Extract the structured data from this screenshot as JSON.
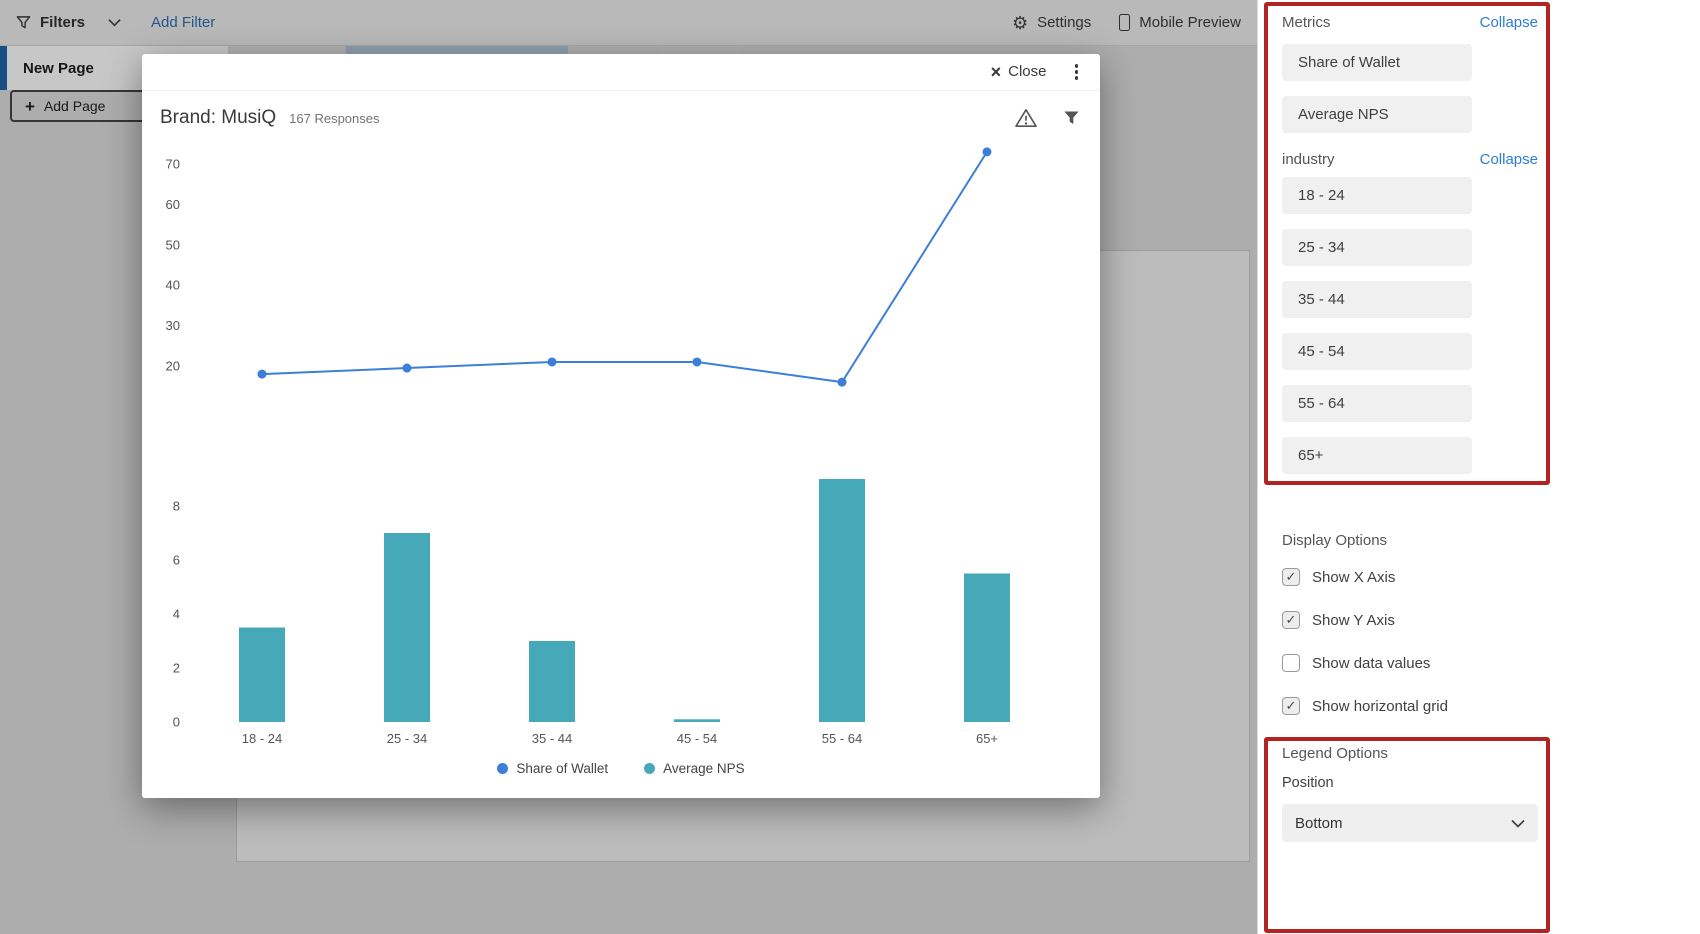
{
  "topbar": {
    "filters_label": "Filters",
    "add_filter_label": "Add Filter",
    "settings_label": "Settings",
    "mobile_preview_label": "Mobile Preview"
  },
  "page": {
    "tab_new_page": "New Page",
    "add_page_label": "Add Page",
    "add_page_plus": "+"
  },
  "modal": {
    "close_x": "×",
    "close_label": "Close",
    "title": "Brand: MusiQ",
    "responses": "167 Responses"
  },
  "chart_data": {
    "type": "combo",
    "title": "Brand: MusiQ",
    "subtitle": "167 Responses",
    "categories": [
      "18 - 24",
      "25 - 34",
      "35 - 44",
      "45 - 54",
      "55 - 64",
      "65+"
    ],
    "series": [
      {
        "name": "Share of Wallet",
        "type": "line",
        "color": "#3d7ed9",
        "values": [
          18,
          19.5,
          21,
          21,
          16,
          73
        ]
      },
      {
        "name": "Average NPS",
        "type": "bar",
        "color": "#45a9ba",
        "values": [
          3.5,
          7,
          3,
          0.1,
          9,
          5.5
        ]
      }
    ],
    "line_axis": {
      "ticks": [
        20,
        30,
        40,
        50,
        60,
        70
      ],
      "min": 15,
      "max": 76
    },
    "bar_axis": {
      "ticks": [
        0,
        2,
        4,
        6,
        8
      ],
      "min": 0,
      "max": 9.3
    },
    "grid": false,
    "legend_position": "bottom"
  },
  "sidebar": {
    "metrics": {
      "title": "Metrics",
      "collapse_label": "Collapse",
      "items": [
        {
          "label": "Share of Wallet"
        },
        {
          "label": "Average NPS"
        }
      ]
    },
    "industry": {
      "title": "industry",
      "collapse_label": "Collapse",
      "items": [
        {
          "label": "18 - 24"
        },
        {
          "label": "25 - 34"
        },
        {
          "label": "35 - 44"
        },
        {
          "label": "45 - 54"
        },
        {
          "label": "55 - 64"
        },
        {
          "label": "65+"
        }
      ]
    },
    "display_options": {
      "title": "Display Options",
      "items": [
        {
          "label": "Show X Axis",
          "checked": true
        },
        {
          "label": "Show Y Axis",
          "checked": true
        },
        {
          "label": "Show data values",
          "checked": false
        },
        {
          "label": "Show horizontal grid",
          "checked": true
        }
      ]
    },
    "legend_options": {
      "title": "Legend Options",
      "position_label": "Position",
      "position_value": "Bottom"
    }
  },
  "colors": {
    "accent_blue": "#2d7dd2",
    "line_series": "#3d7ed9",
    "bar_series": "#45a9ba",
    "annotation_red": "#b12421"
  }
}
